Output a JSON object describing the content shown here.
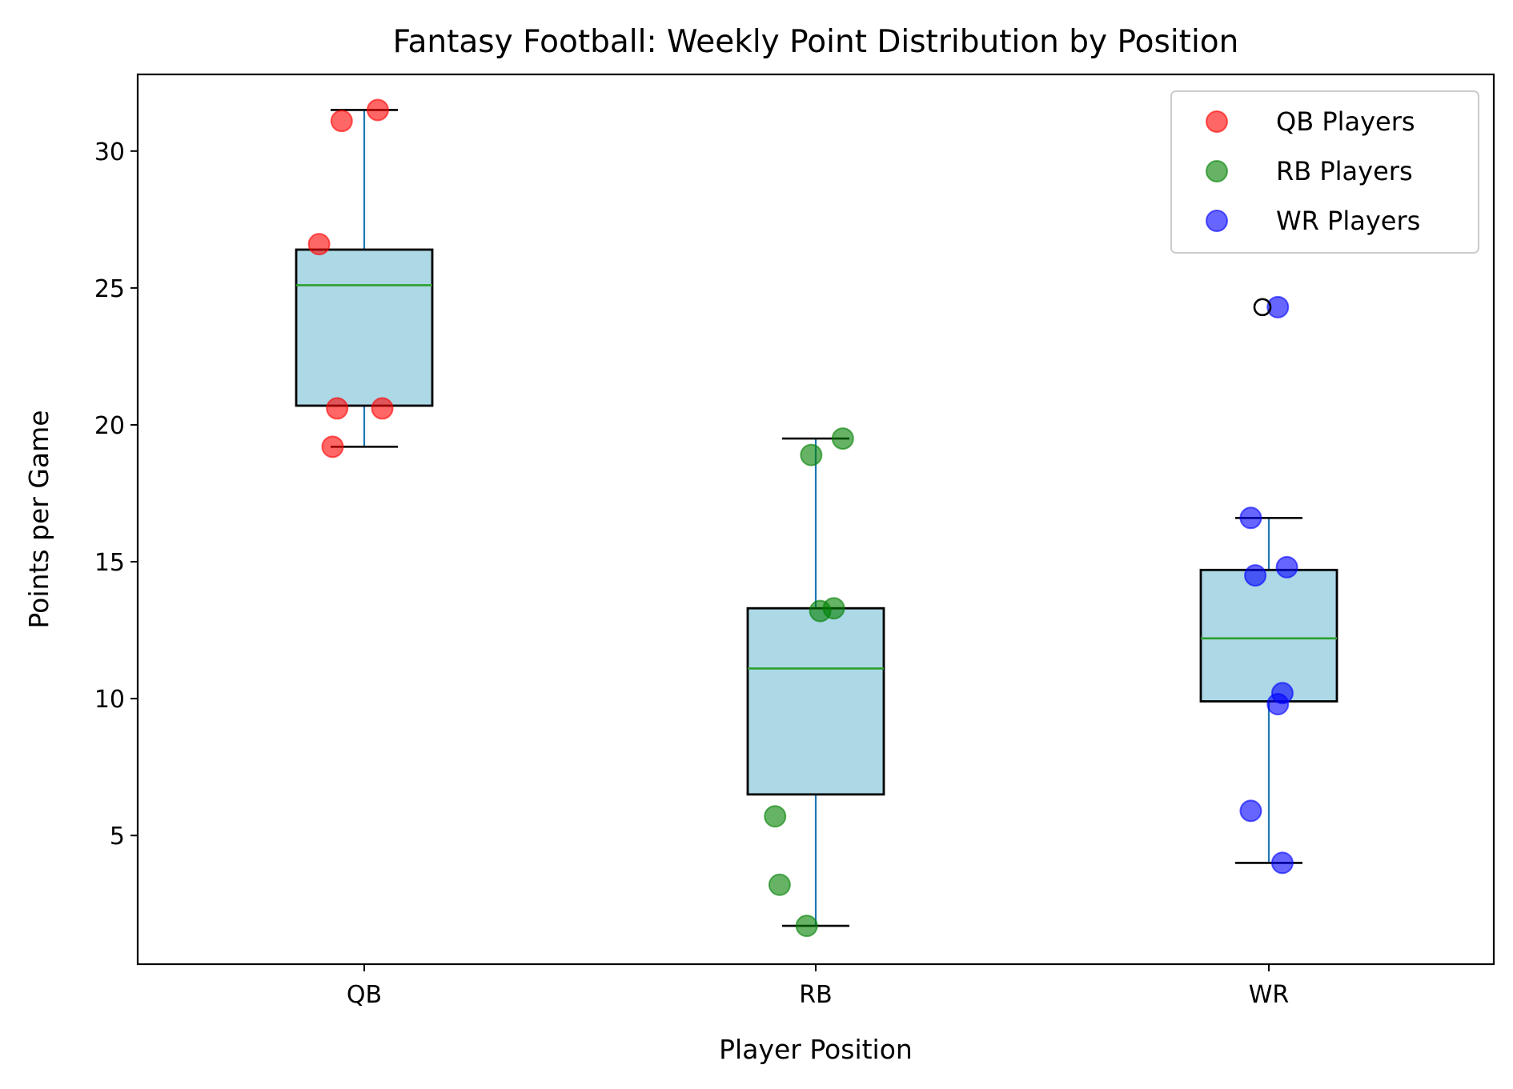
{
  "chart_data": {
    "type": "box",
    "title": "Fantasy Football: Weekly Point Distribution by Position",
    "xlabel": "Player Position",
    "ylabel": "Points per Game",
    "categories": [
      "QB",
      "RB",
      "WR"
    ],
    "ylim": [
      0.3,
      32.8
    ],
    "yticks": [
      5,
      10,
      15,
      20,
      25,
      30
    ],
    "grid": false,
    "legend_position": "top-right",
    "box_fill": "#add8e6",
    "median_color": "#2ca02c",
    "whisker_color": "#1f77b4",
    "boxes": [
      {
        "category": "QB",
        "whisker_low": 19.2,
        "q1": 20.7,
        "median": 25.1,
        "q3": 26.4,
        "whisker_high": 31.5,
        "outliers": []
      },
      {
        "category": "RB",
        "whisker_low": 1.7,
        "q1": 6.5,
        "median": 11.1,
        "q3": 13.3,
        "whisker_high": 19.5,
        "outliers": []
      },
      {
        "category": "WR",
        "whisker_low": 4.0,
        "q1": 9.9,
        "median": 12.2,
        "q3": 14.7,
        "whisker_high": 16.6,
        "outliers": [
          24.3
        ]
      }
    ],
    "series": [
      {
        "name": "QB Players",
        "color": "#ff0000",
        "points": [
          {
            "x": 0.03,
            "y": 31.5
          },
          {
            "x": -0.05,
            "y": 31.1
          },
          {
            "x": -0.1,
            "y": 26.6
          },
          {
            "x": -0.06,
            "y": 20.6
          },
          {
            "x": 0.04,
            "y": 20.6
          },
          {
            "x": -0.07,
            "y": 19.2
          }
        ]
      },
      {
        "name": "RB Players",
        "color": "#008000",
        "points": [
          {
            "x": 0.06,
            "y": 19.5
          },
          {
            "x": -0.01,
            "y": 18.9
          },
          {
            "x": 0.04,
            "y": 13.3
          },
          {
            "x": 0.01,
            "y": 13.2
          },
          {
            "x": -0.09,
            "y": 5.7
          },
          {
            "x": -0.08,
            "y": 3.2
          },
          {
            "x": -0.02,
            "y": 1.7
          }
        ]
      },
      {
        "name": "WR Players",
        "color": "#0000ff",
        "points": [
          {
            "x": 0.02,
            "y": 24.3
          },
          {
            "x": -0.04,
            "y": 16.6
          },
          {
            "x": 0.04,
            "y": 14.8
          },
          {
            "x": -0.03,
            "y": 14.5
          },
          {
            "x": 0.03,
            "y": 10.2
          },
          {
            "x": 0.02,
            "y": 9.8
          },
          {
            "x": -0.04,
            "y": 5.9
          },
          {
            "x": 0.03,
            "y": 4.0
          }
        ]
      }
    ]
  }
}
